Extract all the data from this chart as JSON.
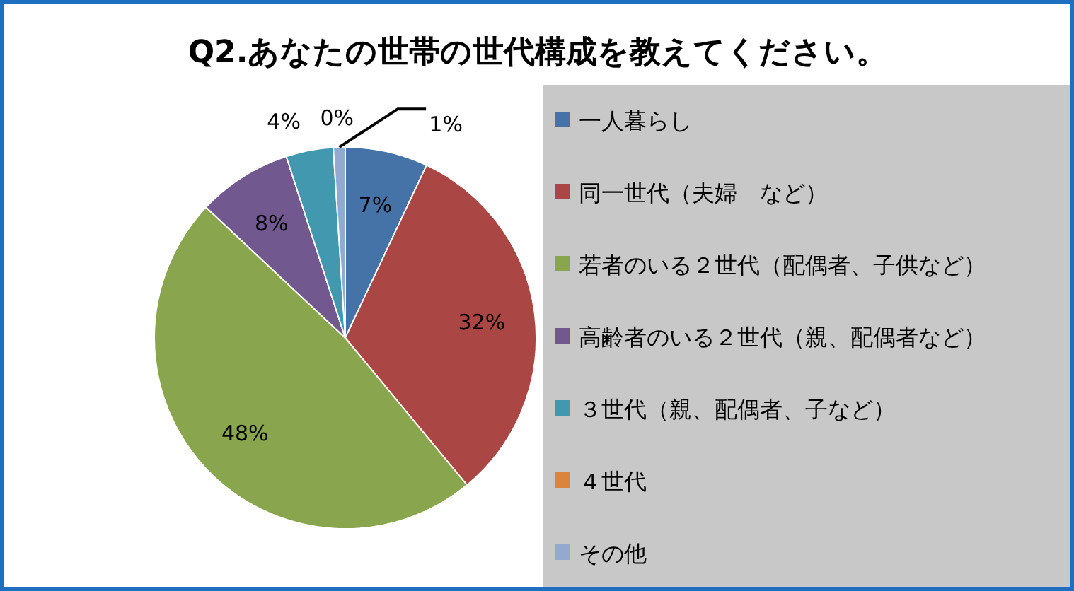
{
  "chart_data": {
    "type": "pie",
    "title": "Q2.あなたの世帯の世代構成を教えてください。",
    "categories": [
      "一人暮らし",
      "同一世代（夫婦　など）",
      "若者のいる２世代（配偶者、子供など）",
      "高齢者のいる２世代（親、配偶者など）",
      "３世代（親、配偶者、子など）",
      "４世代",
      "その他"
    ],
    "values": [
      7,
      32,
      48,
      8,
      4,
      0,
      1
    ],
    "colors": [
      "#4572a7",
      "#aa4643",
      "#89a54e",
      "#71588f",
      "#4198af",
      "#db843d",
      "#93a9cf"
    ],
    "value_labels": [
      "7%",
      "32%",
      "48%",
      "8%",
      "4%",
      "0%",
      "1%"
    ],
    "legend": "right"
  }
}
